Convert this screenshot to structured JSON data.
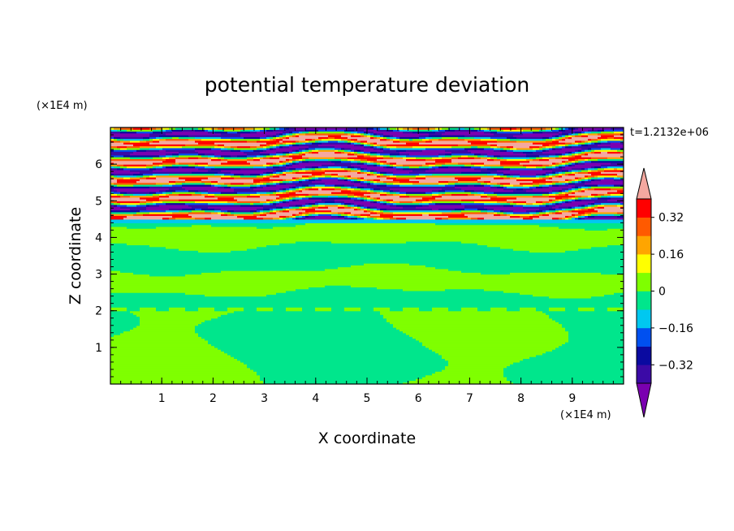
{
  "chart_data": {
    "type": "heatmap",
    "title": "potential temperature deviation",
    "xlabel": "X coordinate",
    "ylabel": "Z coordinate",
    "x_unit": "(×1E4 m)",
    "y_unit": "(×1E4 m)",
    "time_label": "t=1.2132e+06",
    "xlim": [
      0,
      10
    ],
    "ylim": [
      0,
      7
    ],
    "x_ticks": [
      "1",
      "2",
      "3",
      "4",
      "5",
      "6",
      "7",
      "8",
      "9"
    ],
    "y_ticks": [
      "1",
      "2",
      "3",
      "4",
      "5",
      "6"
    ],
    "colorbar": {
      "levels": [
        -0.4,
        -0.32,
        -0.24,
        -0.16,
        -0.08,
        0,
        0.08,
        0.16,
        0.24,
        0.32,
        0.4
      ],
      "tick_labels": [
        "0.32",
        "0.16",
        "0",
        "−0.16",
        "−0.32"
      ],
      "tick_values": [
        0.32,
        0.16,
        0,
        -0.16,
        -0.32
      ],
      "colors": [
        "#7a00b0",
        "#3b0aa6",
        "#0a0aa0",
        "#0050f0",
        "#00c8f0",
        "#00e68c",
        "#7fff00",
        "#ffff00",
        "#ffa500",
        "#ff5a00",
        "#ff0000",
        "#f4a8a0"
      ],
      "extend": "both"
    },
    "layers": [
      {
        "z_range": [
          0,
          4.4
        ],
        "description": "lower region near zero",
        "value_range": [
          -0.08,
          0.08
        ]
      },
      {
        "z_range": [
          2.0,
          2.1
        ],
        "description": "thin band at 2",
        "value_range": [
          -0.32,
          0.32
        ]
      },
      {
        "z_range": [
          4.4,
          7.0
        ],
        "description": "alternating bands",
        "value_range": [
          -0.4,
          0.4
        ]
      }
    ],
    "grid": false
  }
}
